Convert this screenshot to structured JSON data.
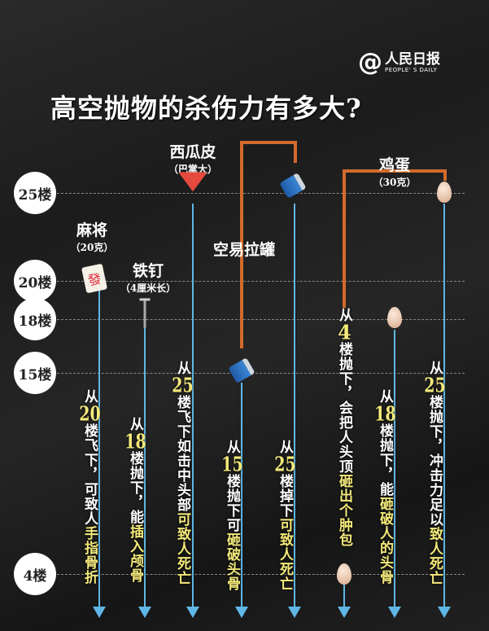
{
  "logo": {
    "at": "@",
    "cn": "人民日报",
    "en": "PEOPLE' S DAILY"
  },
  "title": "高空抛物的杀伤力有多大?",
  "floors": [
    "25楼",
    "20楼",
    "18楼",
    "15楼",
    "4楼"
  ],
  "objects": {
    "mahjong": {
      "name": "麻将",
      "sub": "（20克）",
      "tile": "發"
    },
    "nail": {
      "name": "铁钉",
      "sub": "（4厘米长）"
    },
    "melon": {
      "name": "西瓜皮",
      "sub": "（巴掌大）"
    },
    "can": {
      "name": "空易拉罐"
    },
    "egg": {
      "name": "鸡蛋",
      "sub": "（30克）"
    }
  },
  "columns": [
    {
      "pre": "从",
      "num": "20",
      "mid": "楼飞下，可致人",
      "hl": "手指骨折"
    },
    {
      "pre": "从",
      "num": "18",
      "mid": "楼抛下，能",
      "hl": "插入颅骨"
    },
    {
      "pre": "从",
      "num": "25",
      "mid": "楼飞下如击中头部",
      "hl": "可致人死亡"
    },
    {
      "pre": "从",
      "num": "15",
      "mid": "楼抛下可",
      "hl": "砸破头骨"
    },
    {
      "pre": "从",
      "num": "25",
      "mid": "楼掉下",
      "hl": "可致人死亡"
    },
    {
      "pre": "从",
      "num": "4",
      "mid": "楼抛下，会把人头顶",
      "hl": "砸出个肿包"
    },
    {
      "pre": "从",
      "num": "18",
      "mid": "楼抛下，能",
      "hl": "砸破人的头骨"
    },
    {
      "pre": "从",
      "num": "25",
      "mid": "楼抛下，冲击力足以",
      "hl": "致人死亡"
    }
  ],
  "colors": {
    "arrow": "#5fb7e6",
    "highlight": "#f3e97a",
    "bracket": "#d36a2c"
  }
}
